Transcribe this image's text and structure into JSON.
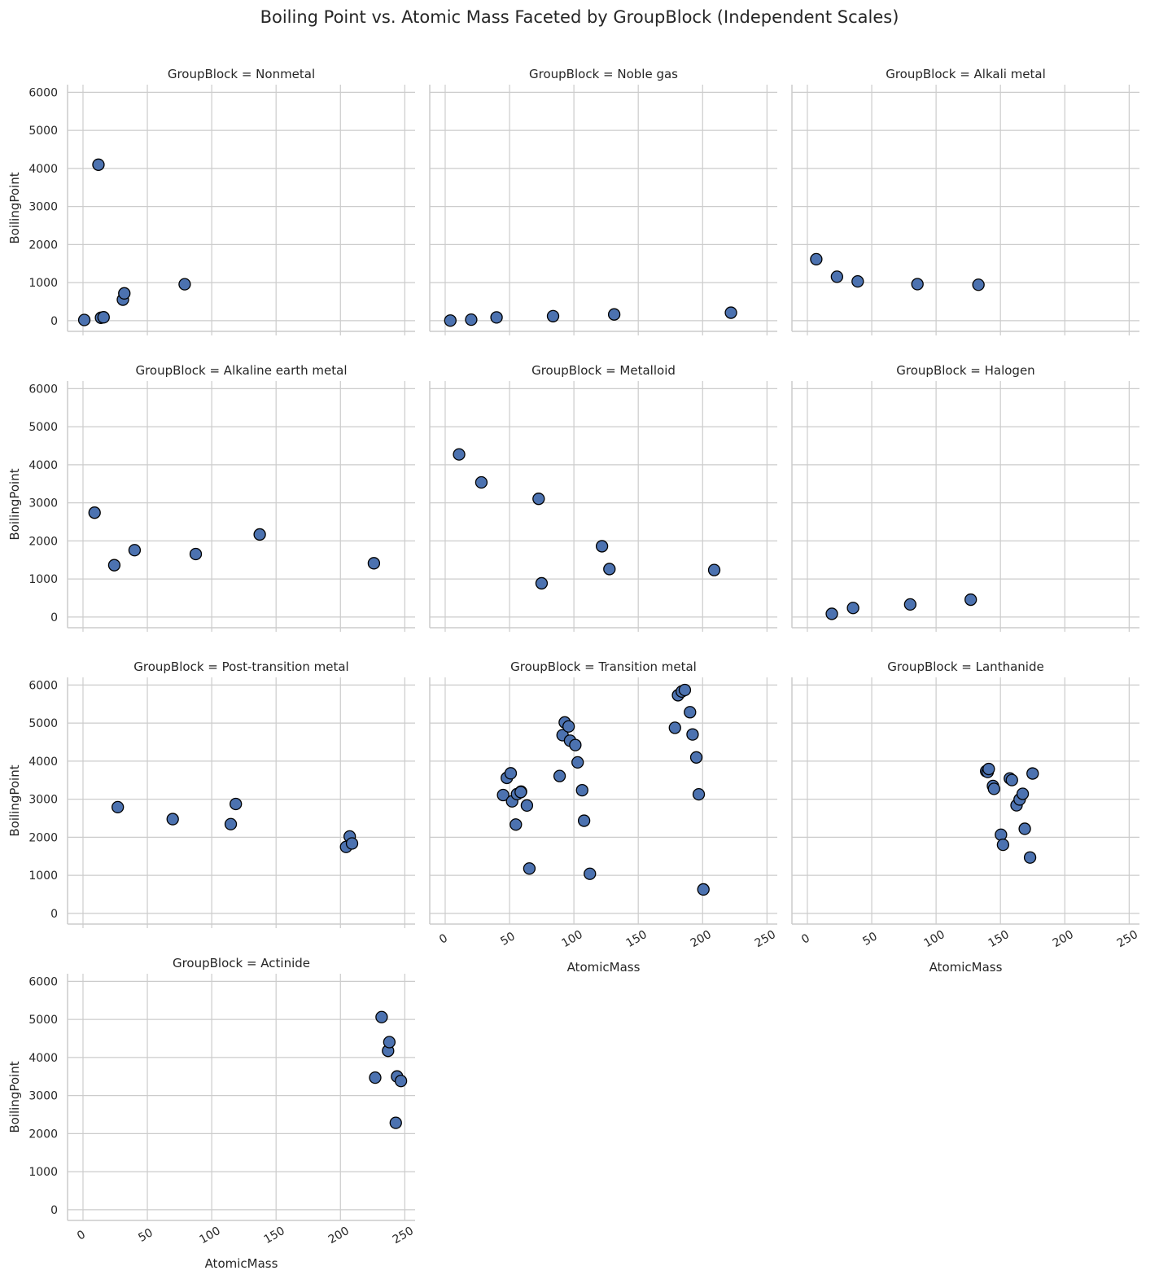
{
  "chart_data": {
    "type": "scatter",
    "title": "Boiling Point vs. Atomic Mass Faceted by GroupBlock (Independent Scales)",
    "xlabel": "AtomicMass",
    "ylabel": "BoilingPoint",
    "xlim": [
      -12,
      258
    ],
    "ylim": [
      -280,
      6200
    ],
    "x_ticks": [
      0,
      50,
      100,
      150,
      200,
      250
    ],
    "y_ticks": [
      0,
      1000,
      2000,
      3000,
      4000,
      5000,
      6000
    ],
    "grid": true,
    "marker_color": "#4c72b0",
    "marker_edge_color": "#000000",
    "facets": [
      {
        "title": "GroupBlock = Nonmetal",
        "points": [
          [
            1.0,
            20
          ],
          [
            12.0,
            4098
          ],
          [
            14.0,
            77
          ],
          [
            16.0,
            90
          ],
          [
            31.0,
            553
          ],
          [
            32.1,
            718
          ],
          [
            79.0,
            958
          ]
        ]
      },
      {
        "title": "GroupBlock = Noble gas",
        "points": [
          [
            4.0,
            4
          ],
          [
            20.2,
            27
          ],
          [
            39.9,
            87
          ],
          [
            83.8,
            120
          ],
          [
            131.3,
            165
          ],
          [
            222.0,
            211
          ]
        ]
      },
      {
        "title": "GroupBlock = Alkali metal",
        "points": [
          [
            6.9,
            1615
          ],
          [
            23.0,
            1156
          ],
          [
            39.1,
            1032
          ],
          [
            85.5,
            961
          ],
          [
            132.9,
            944
          ]
        ]
      },
      {
        "title": "GroupBlock = Alkaline earth metal",
        "points": [
          [
            9.0,
            2742
          ],
          [
            24.3,
            1363
          ],
          [
            40.1,
            1757
          ],
          [
            87.6,
            1655
          ],
          [
            137.3,
            2170
          ],
          [
            226.0,
            1413
          ]
        ]
      },
      {
        "title": "GroupBlock = Metalloid",
        "points": [
          [
            10.8,
            4273
          ],
          [
            28.1,
            3538
          ],
          [
            72.6,
            3106
          ],
          [
            74.9,
            887
          ],
          [
            121.8,
            1860
          ],
          [
            127.6,
            1261
          ],
          [
            209.0,
            1235
          ]
        ]
      },
      {
        "title": "GroupBlock = Halogen",
        "points": [
          [
            19.0,
            85
          ],
          [
            35.5,
            239
          ],
          [
            79.9,
            332
          ],
          [
            126.9,
            457
          ]
        ]
      },
      {
        "title": "GroupBlock = Post-transition metal",
        "points": [
          [
            27.0,
            2792
          ],
          [
            69.7,
            2477
          ],
          [
            114.8,
            2345
          ],
          [
            118.7,
            2875
          ],
          [
            204.4,
            1746
          ],
          [
            207.2,
            2022
          ],
          [
            209.0,
            1837
          ]
        ]
      },
      {
        "title": "GroupBlock = Transition metal",
        "points": [
          [
            45.0,
            3109
          ],
          [
            47.9,
            3560
          ],
          [
            50.9,
            3680
          ],
          [
            52.0,
            2944
          ],
          [
            54.9,
            2334
          ],
          [
            55.8,
            3134
          ],
          [
            58.9,
            3200
          ],
          [
            58.7,
            3186
          ],
          [
            63.5,
            2835
          ],
          [
            65.4,
            1180
          ],
          [
            88.9,
            3609
          ],
          [
            91.2,
            4682
          ],
          [
            92.9,
            5017
          ],
          [
            95.9,
            4912
          ],
          [
            97.0,
            4538
          ],
          [
            101.1,
            4423
          ],
          [
            102.9,
            3968
          ],
          [
            106.4,
            3236
          ],
          [
            107.9,
            2435
          ],
          [
            112.4,
            1040
          ],
          [
            178.5,
            4876
          ],
          [
            180.9,
            5731
          ],
          [
            183.8,
            5828
          ],
          [
            186.2,
            5869
          ],
          [
            190.2,
            5285
          ],
          [
            192.2,
            4701
          ],
          [
            195.1,
            4098
          ],
          [
            197.0,
            3129
          ],
          [
            200.6,
            630
          ]
        ]
      },
      {
        "title": "GroupBlock = Lanthanide",
        "points": [
          [
            138.9,
            3737
          ],
          [
            140.1,
            3716
          ],
          [
            140.9,
            3793
          ],
          [
            144.2,
            3347
          ],
          [
            145.0,
            3273
          ],
          [
            150.4,
            2067
          ],
          [
            152.0,
            1802
          ],
          [
            157.3,
            3546
          ],
          [
            158.9,
            3503
          ],
          [
            162.5,
            2840
          ],
          [
            164.9,
            2993
          ],
          [
            167.3,
            3141
          ],
          [
            168.9,
            2223
          ],
          [
            173.0,
            1469
          ],
          [
            175.0,
            3675
          ]
        ]
      },
      {
        "title": "GroupBlock = Actinide",
        "points": [
          [
            227.0,
            3471
          ],
          [
            232.0,
            5061
          ],
          [
            237.0,
            4175
          ],
          [
            238.0,
            4404
          ],
          [
            243.0,
            2284
          ],
          [
            244.0,
            3501
          ],
          [
            247.0,
            3383
          ]
        ]
      }
    ]
  }
}
